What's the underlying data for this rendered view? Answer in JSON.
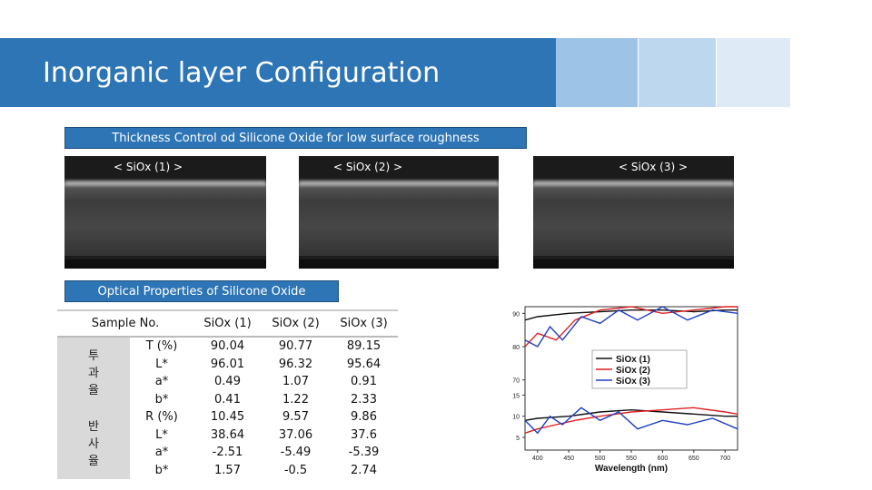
{
  "slide": {
    "title": "Inorganic layer Configuration"
  },
  "section1": {
    "label": "Thickness Control od Silicone Oxide for low surface roughness"
  },
  "sem_images": [
    {
      "caption": "< SiOx (1) >"
    },
    {
      "caption": "< SiOx (2) >"
    },
    {
      "caption": "< SiOx (3) >"
    }
  ],
  "section2": {
    "label": "Optical Properties of Silicone Oxide"
  },
  "table": {
    "header": [
      "Sample No.",
      "SiOx (1)",
      "SiOx (2)",
      "SiOx (3)"
    ],
    "group1": "투 과 율",
    "group2": "반 사 율",
    "rows": [
      {
        "prop": "T (%)",
        "v1": "90.04",
        "v2": "90.77",
        "v3": "89.15"
      },
      {
        "prop": "L*",
        "v1": "96.01",
        "v2": "96.32",
        "v3": "95.64"
      },
      {
        "prop": "a*",
        "v1": "0.49",
        "v2": "1.07",
        "v3": "0.91"
      },
      {
        "prop": "b*",
        "v1": "0.41",
        "v2": "1.22",
        "v3": "2.33"
      },
      {
        "prop": "R (%)",
        "v1": "10.45",
        "v2": "9.57",
        "v3": "9.86"
      },
      {
        "prop": "L*",
        "v1": "38.64",
        "v2": "37.06",
        "v3": "37.6"
      },
      {
        "prop": "a*",
        "v1": "-2.51",
        "v2": "-5.49",
        "v3": "-5.39"
      },
      {
        "prop": "b*",
        "v1": "1.57",
        "v2": "-0.5",
        "v3": "2.74"
      }
    ]
  },
  "chart_data": {
    "type": "line",
    "xlabel": "Wavelength (nm)",
    "ylabel": "",
    "x_ticks": [
      400,
      450,
      500,
      550,
      600,
      650,
      700
    ],
    "y_ticks": [
      5,
      10,
      15,
      70,
      80,
      90
    ],
    "legend_position": "center-right",
    "series": [
      {
        "name": "SiOx (1)",
        "color": "#111111",
        "transmittance": [
          [
            380,
            88
          ],
          [
            400,
            89
          ],
          [
            450,
            90
          ],
          [
            500,
            90.5
          ],
          [
            550,
            91
          ],
          [
            600,
            91
          ],
          [
            650,
            90.5
          ],
          [
            700,
            91
          ],
          [
            720,
            91
          ]
        ],
        "reflectance": [
          [
            380,
            9
          ],
          [
            400,
            9.5
          ],
          [
            450,
            10
          ],
          [
            500,
            11
          ],
          [
            550,
            11.5
          ],
          [
            600,
            11
          ],
          [
            650,
            10.5
          ],
          [
            700,
            10
          ],
          [
            720,
            10
          ]
        ]
      },
      {
        "name": "SiOx (2)",
        "color": "#e02020",
        "transmittance": [
          [
            380,
            80
          ],
          [
            400,
            84
          ],
          [
            430,
            82
          ],
          [
            460,
            88
          ],
          [
            500,
            91
          ],
          [
            550,
            92
          ],
          [
            600,
            90
          ],
          [
            650,
            91
          ],
          [
            700,
            92
          ],
          [
            720,
            92
          ]
        ],
        "reflectance": [
          [
            380,
            6
          ],
          [
            400,
            7
          ],
          [
            430,
            8
          ],
          [
            460,
            9
          ],
          [
            500,
            10
          ],
          [
            550,
            11
          ],
          [
            600,
            11.5
          ],
          [
            650,
            12
          ],
          [
            700,
            11
          ],
          [
            720,
            10.5
          ]
        ]
      },
      {
        "name": "SiOx (3)",
        "color": "#1f3fbf",
        "transmittance": [
          [
            380,
            82
          ],
          [
            400,
            80
          ],
          [
            420,
            86
          ],
          [
            440,
            82
          ],
          [
            470,
            89
          ],
          [
            500,
            87
          ],
          [
            530,
            91
          ],
          [
            560,
            88
          ],
          [
            600,
            92
          ],
          [
            640,
            88
          ],
          [
            680,
            91
          ],
          [
            720,
            90
          ]
        ],
        "reflectance": [
          [
            380,
            9
          ],
          [
            400,
            6
          ],
          [
            420,
            10
          ],
          [
            440,
            8
          ],
          [
            470,
            12
          ],
          [
            500,
            9
          ],
          [
            530,
            11
          ],
          [
            560,
            7
          ],
          [
            600,
            9
          ],
          [
            640,
            8
          ],
          [
            680,
            9.5
          ],
          [
            720,
            7
          ]
        ]
      }
    ]
  }
}
